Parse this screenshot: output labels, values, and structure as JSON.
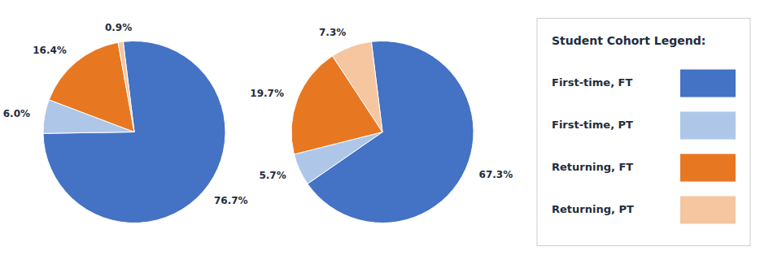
{
  "chart_data": [
    {
      "type": "pie",
      "values": [
        76.7,
        6.0,
        16.4,
        0.9
      ],
      "value_labels": [
        "76.7%",
        "6.0%",
        "16.4%",
        "0.9%"
      ],
      "colors": [
        "#4472C4",
        "#AEC6E8",
        "#E87722",
        "#F5C6A0"
      ],
      "data_labels": true
    },
    {
      "type": "pie",
      "categories": [
        "First-time, FT",
        "First-time, PT",
        "Returning, FT",
        "Returning, PT"
      ],
      "values": [
        67.3,
        5.7,
        19.7,
        7.3
      ],
      "value_labels": [
        "67.3%",
        "5.7%",
        "19.7%",
        "7.3%"
      ],
      "colors": [
        "#4472C4",
        "#AEC6E8",
        "#E87722",
        "#F5C6A0"
      ],
      "data_labels": true,
      "legend": "right",
      "legend_title": "Student Cohort Legend:"
    }
  ]
}
